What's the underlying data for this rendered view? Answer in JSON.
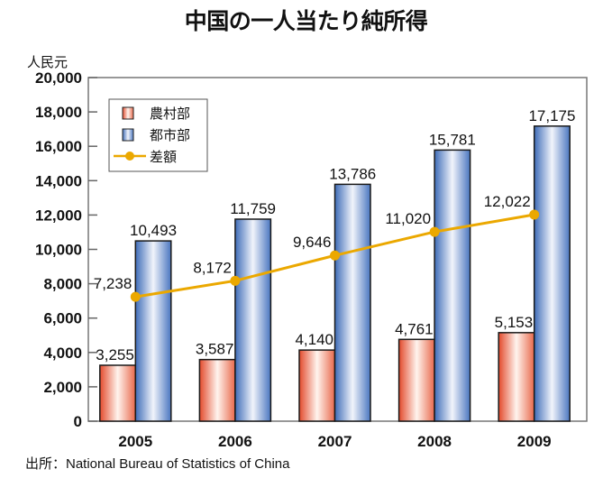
{
  "chart_data": {
    "type": "bar",
    "title": "中国の一人当たり純所得",
    "ylabel": "人民元",
    "xlabel": "",
    "ylim": [
      0,
      20000
    ],
    "yticks": [
      0,
      2000,
      4000,
      6000,
      8000,
      10000,
      12000,
      14000,
      16000,
      18000,
      20000
    ],
    "ytick_labels": [
      "0",
      "2,000",
      "4,000",
      "6,000",
      "8,000",
      "10,000",
      "12,000",
      "14,000",
      "16,000",
      "18,000",
      "20,000"
    ],
    "categories": [
      "2005",
      "2006",
      "2007",
      "2008",
      "2009"
    ],
    "grid": false,
    "legend_position": "top-left",
    "series": [
      {
        "name": "農村部",
        "kind": "bar",
        "values": [
          3255,
          3587,
          4140,
          4761,
          5153
        ],
        "labels": [
          "3,255",
          "3,587",
          "4,140",
          "4,761",
          "5,153"
        ],
        "color": "#e8553a"
      },
      {
        "name": "都市部",
        "kind": "bar",
        "values": [
          10493,
          11759,
          13786,
          15781,
          17175
        ],
        "labels": [
          "10,493",
          "11,759",
          "13,786",
          "15,781",
          "17,175"
        ],
        "color": "#3a6ab8"
      },
      {
        "name": "差額",
        "kind": "line",
        "values": [
          7238,
          8172,
          9646,
          11020,
          12022
        ],
        "labels": [
          "7,238",
          "8,172",
          "9,646",
          "11,020",
          "12,022"
        ],
        "color": "#eba800"
      }
    ]
  },
  "source": "出所：National Bureau of Statistics of China"
}
